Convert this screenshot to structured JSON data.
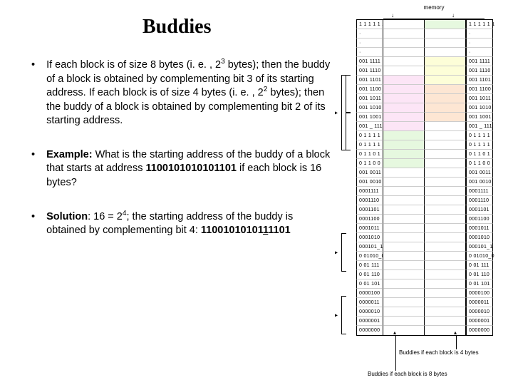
{
  "title": "Buddies",
  "bullets": {
    "b1_html": "If each block is of size 8 bytes (i. e. , 2<sup>3</sup> bytes); then the buddy of a block is obtained by complementing bit 3 of its starting address. If each block is of size 4 bytes (i. e. , 2<sup>2</sup> bytes); then the buddy of a block is obtained by complementing bit 2 of its starting address.",
    "b2_html": "<b>Example:</b> What is the starting address of the buddy of a block that starts at address <b>1100101010101101</b> if each block is 16 bytes?",
    "b3_html": "<b>Solution</b>: 16 = 2<sup>4</sup>; the starting address of the buddy is obtained by complementing bit 4: <b>11001010101<span class='u'>1</span>1101</b>"
  },
  "memory_label": "memory",
  "caption1": "Buddies if each block is 4 bytes",
  "caption2": "Buddies if each block is 8 bytes",
  "diagram": {
    "rows": [
      {
        "idx": 0,
        "addr": "",
        "label": "1 1 1 1 1 1",
        "left": "fill-white",
        "right": "fill-green"
      },
      {
        "idx": 1,
        "addr": "",
        "label": "",
        "left": "fill-white",
        "right": "fill-white",
        "dots": true
      },
      {
        "idx": 2,
        "addr": "",
        "label": "",
        "left": "fill-white",
        "right": "fill-white",
        "dots": true
      },
      {
        "idx": 3,
        "addr": "",
        "label": "",
        "left": "fill-white",
        "right": "fill-white",
        "dots": true
      },
      {
        "idx": 4,
        "addr": "",
        "label": "001 1111",
        "left": "fill-white",
        "right": "fill-yellow"
      },
      {
        "idx": 5,
        "addr": "",
        "label": "001 1110",
        "left": "fill-white",
        "right": "fill-yellow"
      },
      {
        "idx": 6,
        "addr": "",
        "label": "001 1101",
        "left": "fill-pink",
        "right": "fill-yellow"
      },
      {
        "idx": 7,
        "addr": "",
        "label": "001 1100",
        "left": "fill-pink",
        "right": "fill-peach"
      },
      {
        "idx": 8,
        "addr": "",
        "label": "001 1011",
        "left": "fill-pink",
        "right": "fill-peach"
      },
      {
        "idx": 9,
        "addr": "",
        "label": "001 1010",
        "left": "fill-pink",
        "right": "fill-peach"
      },
      {
        "idx": 10,
        "addr": "",
        "label": "001 1001",
        "left": "fill-pink",
        "right": "fill-peach"
      },
      {
        "idx": 11,
        "addr": "",
        "label": "001  _ 111",
        "left": "fill-pink",
        "right": "fill-white"
      },
      {
        "idx": 12,
        "addr": "",
        "label": "0 1 1 1 1",
        "left": "fill-green",
        "right": "fill-white"
      },
      {
        "idx": 13,
        "addr": "",
        "label": "0 1 1 1 1",
        "left": "fill-green",
        "right": "fill-white"
      },
      {
        "idx": 14,
        "addr": "",
        "label": "0 1 1 0 1",
        "left": "fill-green",
        "right": "fill-white"
      },
      {
        "idx": 15,
        "addr": "",
        "label": "0 1 1 0 0",
        "left": "fill-green",
        "right": "fill-white"
      },
      {
        "idx": 16,
        "addr": "",
        "label": "001 0011",
        "left": "fill-white",
        "right": "fill-white"
      },
      {
        "idx": 17,
        "addr": "",
        "label": "001 0010",
        "left": "fill-white",
        "right": "fill-white"
      },
      {
        "idx": 18,
        "addr": "",
        "label": "0001111",
        "left": "fill-white",
        "right": "fill-white"
      },
      {
        "idx": 19,
        "addr": "",
        "label": "0001110",
        "left": "fill-white",
        "right": "fill-white"
      },
      {
        "idx": 20,
        "addr": "",
        "label": "0001101",
        "left": "fill-white",
        "right": "fill-white"
      },
      {
        "idx": 21,
        "addr": "",
        "label": "0001100",
        "left": "fill-white",
        "right": "fill-white"
      },
      {
        "idx": 22,
        "addr": "",
        "label": "0001011",
        "left": "fill-white",
        "right": "fill-white"
      },
      {
        "idx": 23,
        "addr": "",
        "label": "0001010",
        "left": "fill-white",
        "right": "fill-white"
      },
      {
        "idx": 24,
        "addr": "",
        "label": "000101_1",
        "left": "fill-white",
        "right": "fill-white"
      },
      {
        "idx": 25,
        "addr": "",
        "label": "0 01010_0",
        "left": "fill-white",
        "right": "fill-white"
      },
      {
        "idx": 26,
        "addr": "",
        "label": "0 01 111",
        "left": "fill-white",
        "right": "fill-white"
      },
      {
        "idx": 27,
        "addr": "",
        "label": "0 01 110",
        "left": "fill-white",
        "right": "fill-white"
      },
      {
        "idx": 28,
        "addr": "",
        "label": "0 01 101",
        "left": "fill-white",
        "right": "fill-white"
      },
      {
        "idx": 29,
        "addr": "",
        "label": "0000100",
        "left": "fill-white",
        "right": "fill-white"
      },
      {
        "idx": 30,
        "addr": "",
        "label": "0000011",
        "left": "fill-white",
        "right": "fill-white"
      },
      {
        "idx": 31,
        "addr": "",
        "label": "0000010",
        "left": "fill-white",
        "right": "fill-white"
      },
      {
        "idx": 32,
        "addr": "",
        "label": "0000001",
        "left": "fill-white",
        "right": "fill-white"
      },
      {
        "idx": 33,
        "addr": "",
        "label": "0000000",
        "left": "fill-white",
        "right": "fill-white"
      }
    ]
  }
}
